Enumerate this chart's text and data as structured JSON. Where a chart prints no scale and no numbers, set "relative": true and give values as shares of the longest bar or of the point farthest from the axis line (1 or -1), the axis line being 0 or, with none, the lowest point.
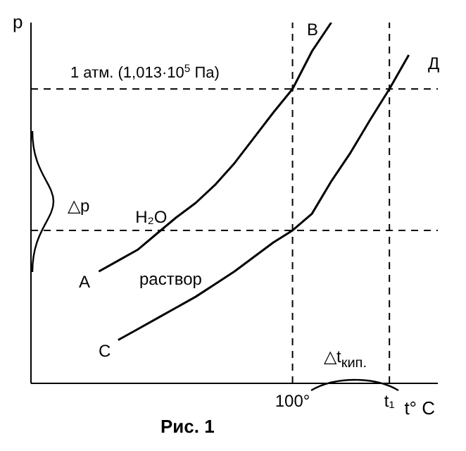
{
  "chart_data": {
    "type": "line",
    "relative": true,
    "xlabel": "t° C",
    "ylabel": "p",
    "tick_labels": "x",
    "marker": "none",
    "grid": false,
    "legend": false,
    "line_style": "solid",
    "categories": [
      null,
      null,
      null,
      null,
      null,
      null,
      null,
      null,
      null,
      null,
      null,
      null,
      null,
      "100°",
      null,
      null,
      null,
      null,
      "t₁",
      null,
      null
    ],
    "series": [
      {
        "name": "H₂O",
        "color": "#000000",
        "values": [
          null,
          null,
          null,
          0.31,
          0.34,
          0.37,
          0.415,
          0.46,
          0.5,
          0.55,
          0.61,
          0.68,
          0.75,
          0.816,
          0.92,
          1.0,
          null,
          null,
          null,
          null,
          null
        ]
      },
      {
        "name": "раствор",
        "color": "#000000",
        "values": [
          null,
          null,
          null,
          null,
          0.12,
          0.15,
          0.18,
          0.21,
          0.24,
          0.275,
          0.31,
          0.35,
          0.39,
          0.424,
          0.47,
          0.56,
          0.64,
          0.73,
          0.816,
          0.91,
          null
        ]
      }
    ],
    "ref_lines": [
      {
        "axis": "y",
        "value": 0.816,
        "label": "1 атм. (1,013·10$^{5}$ Па)",
        "line_style": "dashed",
        "color": "#000000"
      },
      {
        "axis": "y",
        "value": 0.424,
        "line_style": "dashed",
        "color": "#000000"
      },
      {
        "axis": "x",
        "value": "100°",
        "line_style": "dashed",
        "color": "#000000"
      },
      {
        "axis": "x",
        "value": "t₁",
        "line_style": "dashed",
        "color": "#000000"
      }
    ],
    "annotations": [
      "A",
      "B",
      "C",
      "Д",
      "△p",
      "△t$_{кип.}$",
      "Рис. 1"
    ]
  }
}
